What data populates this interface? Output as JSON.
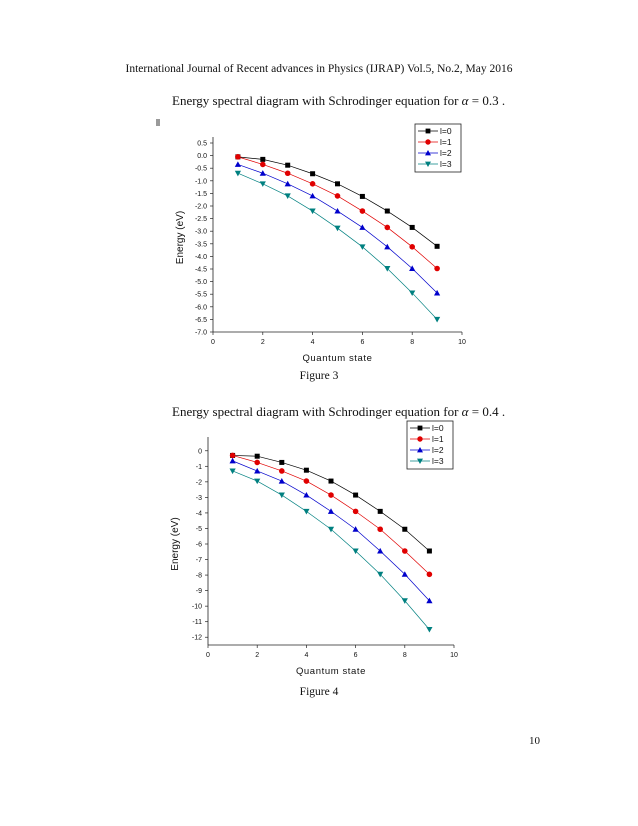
{
  "header": {
    "text": "International Journal of Recent advances in Physics (IJRAP) Vol.5, No.2, May 2016"
  },
  "captions": [
    {
      "prefix": "Energy spectral diagram with Schrodinger equation for ",
      "alpha": "α",
      "equation": " = 0.3 ."
    },
    {
      "prefix": "Energy spectral diagram with Schrodinger equation for ",
      "alpha": "α",
      "equation": " = 0.4 ."
    }
  ],
  "figures": [
    "Figure 3",
    "Figure 4"
  ],
  "page_number": "10",
  "chart_data": [
    {
      "type": "line",
      "title": "",
      "xlabel": "Quantum state",
      "ylabel": "Energy (eV)",
      "xlim": [
        0,
        10
      ],
      "ylim": [
        -7.0,
        0.5
      ],
      "xticks": [
        "0",
        "2",
        "4",
        "6",
        "8",
        "10"
      ],
      "xtick_values": [
        0,
        2,
        4,
        6,
        8,
        10
      ],
      "yticks": [
        "0.5",
        "0.0",
        "-0.5",
        "-1.0",
        "-1.5",
        "-2.0",
        "-2.5",
        "-3.0",
        "-3.5",
        "-4.0",
        "-4.5",
        "-5.0",
        "-5.5",
        "-6.0",
        "-6.5",
        "-7.0"
      ],
      "ytick_values": [
        0.5,
        0.0,
        -0.5,
        -1.0,
        -1.5,
        -2.0,
        -2.5,
        -3.0,
        -3.5,
        -4.0,
        -4.5,
        -5.0,
        -5.5,
        -6.0,
        -6.5,
        -7.0
      ],
      "legend_position": "top-right",
      "x": [
        1,
        2,
        3,
        4,
        5,
        6,
        7,
        8,
        9
      ],
      "series": [
        {
          "name": "l=0",
          "color": "#000000",
          "marker": "square",
          "values": [
            -0.05,
            -0.15,
            -0.38,
            -0.72,
            -1.12,
            -1.62,
            -2.2,
            -2.85,
            -3.6
          ]
        },
        {
          "name": "l=1",
          "color": "#e00000",
          "marker": "circle",
          "values": [
            -0.05,
            -0.35,
            -0.7,
            -1.12,
            -1.6,
            -2.2,
            -2.85,
            -3.62,
            -4.48
          ]
        },
        {
          "name": "l=2",
          "color": "#0000cc",
          "marker": "triangle-up",
          "values": [
            -0.35,
            -0.7,
            -1.12,
            -1.6,
            -2.2,
            -2.85,
            -3.62,
            -4.48,
            -5.45
          ]
        },
        {
          "name": "l=3",
          "color": "#008080",
          "marker": "triangle-down",
          "values": [
            -0.7,
            -1.12,
            -1.6,
            -2.2,
            -2.88,
            -3.62,
            -4.48,
            -5.45,
            -6.5
          ]
        }
      ]
    },
    {
      "type": "line",
      "title": "",
      "xlabel": "Quantum state",
      "ylabel": "Energy (eV)",
      "xlim": [
        0,
        10
      ],
      "ylim": [
        -12.5,
        0.5
      ],
      "xticks": [
        "0",
        "2",
        "4",
        "6",
        "8",
        "10"
      ],
      "xtick_values": [
        0,
        2,
        4,
        6,
        8,
        10
      ],
      "yticks": [
        "0",
        "-1",
        "-2",
        "-3",
        "-4",
        "-5",
        "-6",
        "-7",
        "-8",
        "-9",
        "-10",
        "-11",
        "-12"
      ],
      "ytick_values": [
        0,
        -1,
        -2,
        -3,
        -4,
        -5,
        -6,
        -7,
        -8,
        -9,
        -10,
        -11,
        -12
      ],
      "legend_position": "top-right",
      "x": [
        1,
        2,
        3,
        4,
        5,
        6,
        7,
        8,
        9
      ],
      "series": [
        {
          "name": "l=0",
          "color": "#000000",
          "marker": "square",
          "values": [
            -0.3,
            -0.35,
            -0.75,
            -1.25,
            -1.95,
            -2.85,
            -3.9,
            -5.05,
            -6.45
          ]
        },
        {
          "name": "l=1",
          "color": "#e00000",
          "marker": "circle",
          "values": [
            -0.3,
            -0.75,
            -1.3,
            -1.95,
            -2.85,
            -3.9,
            -5.05,
            -6.45,
            -7.95
          ]
        },
        {
          "name": "l=2",
          "color": "#0000cc",
          "marker": "triangle-up",
          "values": [
            -0.65,
            -1.3,
            -1.95,
            -2.85,
            -3.9,
            -5.05,
            -6.45,
            -7.95,
            -9.65
          ]
        },
        {
          "name": "l=3",
          "color": "#008080",
          "marker": "triangle-down",
          "values": [
            -1.3,
            -1.95,
            -2.85,
            -3.9,
            -5.05,
            -6.45,
            -7.95,
            -9.65,
            -11.5
          ]
        }
      ]
    }
  ]
}
